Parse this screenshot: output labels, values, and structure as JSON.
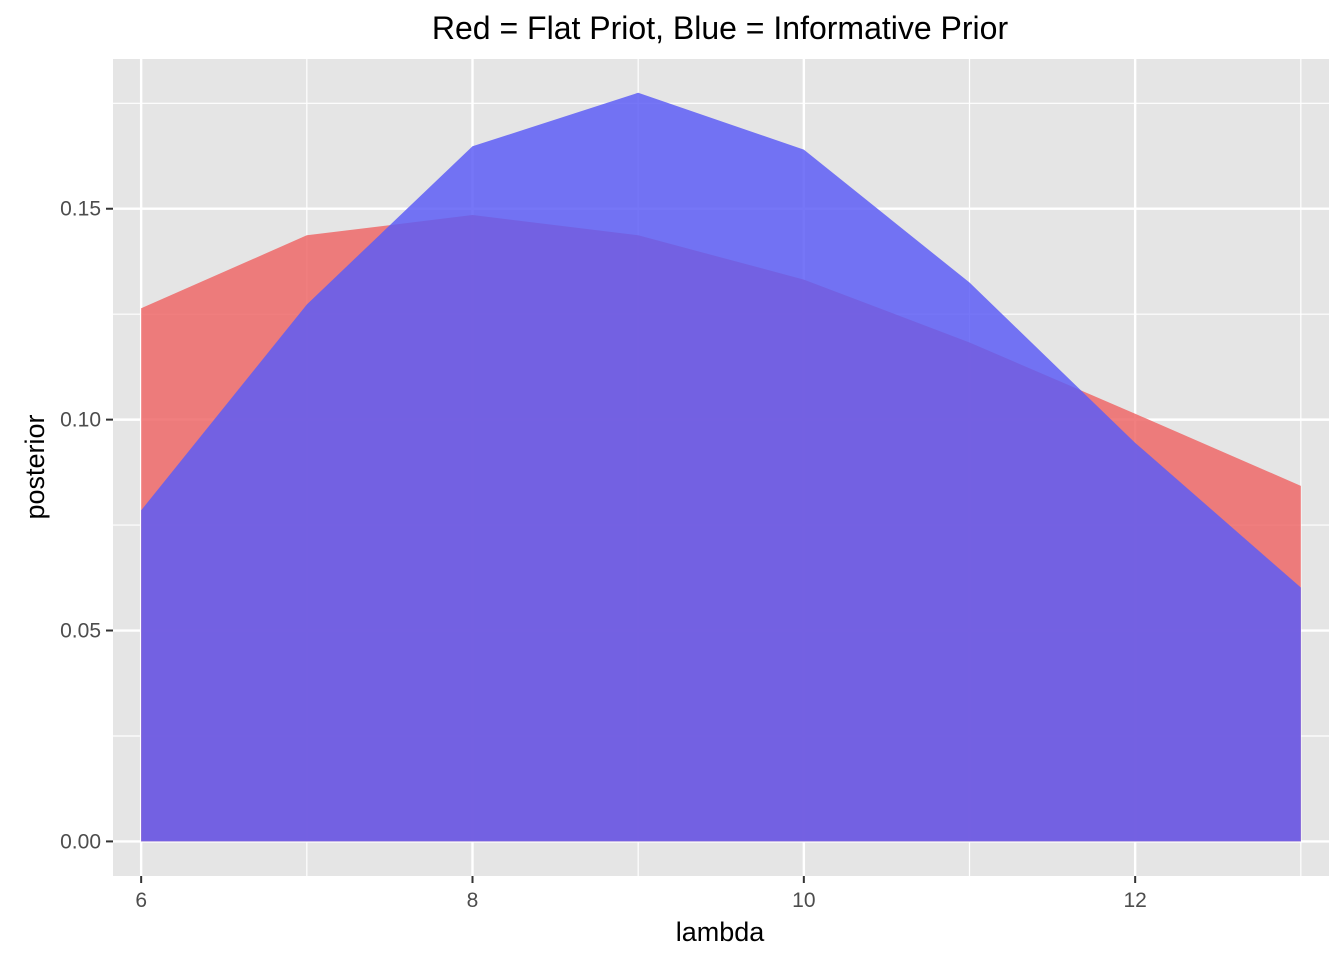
{
  "chart_data": {
    "type": "area",
    "title": "Red = Flat Priot, Blue = Informative Prior",
    "xlabel": "lambda",
    "ylabel": "posterior",
    "xlim": [
      5.83,
      13.17
    ],
    "ylim": [
      -0.0082,
      0.1855
    ],
    "x_ticks": [
      6,
      8,
      10,
      12
    ],
    "x_tick_labels": [
      "6",
      "8",
      "10",
      "12"
    ],
    "y_ticks": [
      0.0,
      0.05,
      0.1,
      0.15
    ],
    "y_tick_labels": [
      "0.00",
      "0.05",
      "0.10",
      "0.15"
    ],
    "grid": true,
    "background_color": "#e5e5e5",
    "grid_color": "#ffffff",
    "series": [
      {
        "name": "Flat Prior",
        "color": "#f8766d",
        "fill_color": "#ee6666",
        "x": [
          6,
          7,
          8,
          9,
          10,
          11,
          12,
          13
        ],
        "values": [
          0.1264,
          0.1437,
          0.1485,
          0.1437,
          0.1332,
          0.1183,
          0.1014,
          0.0843
        ]
      },
      {
        "name": "Informative Prior",
        "color": "#0000ff",
        "fill_color": "#5c5cf5",
        "x": [
          6,
          7,
          8,
          9,
          10,
          11,
          12,
          13
        ],
        "values": [
          0.0785,
          0.1273,
          0.1648,
          0.1775,
          0.164,
          0.1325,
          0.0945,
          0.0602
        ]
      }
    ]
  }
}
